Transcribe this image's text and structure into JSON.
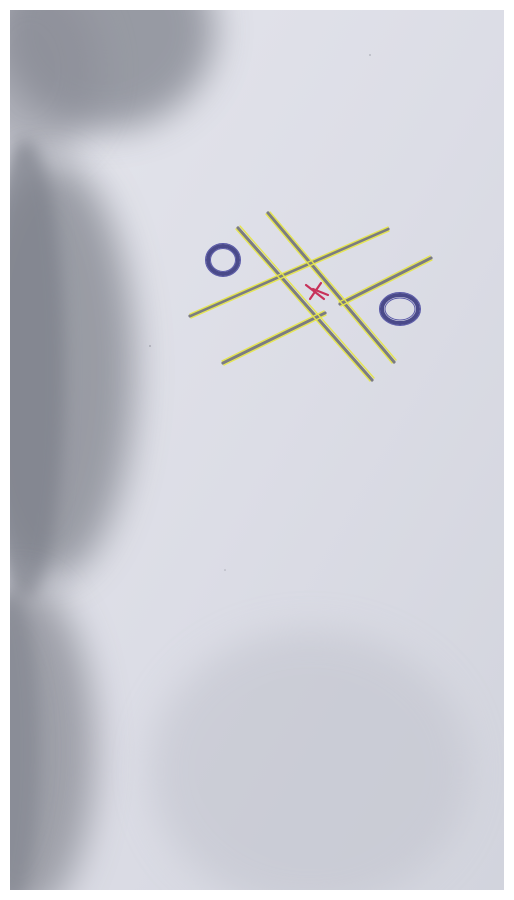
{
  "board": {
    "cells": [
      [
        "O",
        "",
        ""
      ],
      [
        "",
        "X",
        "O"
      ],
      [
        "",
        "",
        ""
      ]
    ],
    "marks": [
      {
        "symbol": "O",
        "cell": "top-left"
      },
      {
        "symbol": "X",
        "cell": "center"
      },
      {
        "symbol": "O",
        "cell": "middle-right"
      }
    ]
  },
  "colors": {
    "paper": "#dfe0e8",
    "shadow": "#8e9099",
    "grid_pencil": "#6b6b70",
    "grid_highlight": "#e6e64a",
    "o_mark": "#4a4a8a",
    "o_highlight": "#5a5aa8",
    "x_mark": "#c8325a",
    "frame": "#ffffff"
  },
  "icons": {
    "o_mark": "circle-mark-icon",
    "x_mark": "cross-mark-icon"
  }
}
